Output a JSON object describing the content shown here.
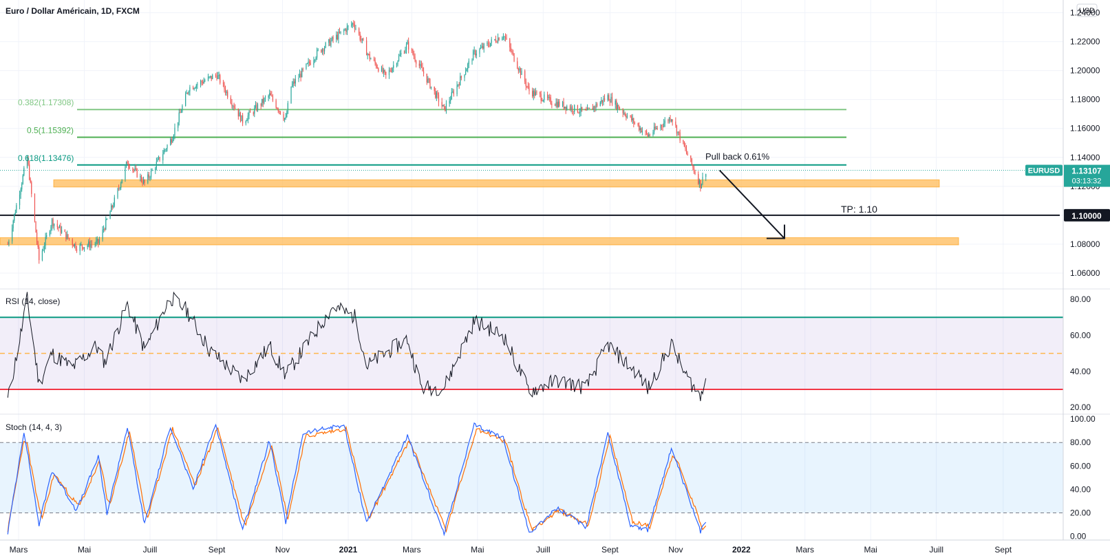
{
  "header": {
    "title": "Euro / Dollar Américain, 1D, FXCM",
    "currency_button": "USD"
  },
  "price_panel": {
    "symbol_badge": "EURUSD",
    "last_price": "1.13107",
    "countdown": "03:13:32",
    "tp_price_label": "1.10000",
    "colors": {
      "up": "#26a69a",
      "down": "#ef5350",
      "fib_382": "#81c784",
      "fib_50": "#4caf50",
      "fib_618": "#089981",
      "zone": "#ffb74d",
      "badge": "#26a69a",
      "tp_badge": "#131722"
    }
  },
  "annotations": {
    "fib_382": "0.382(1.17308)",
    "fib_50": "0.5(1.15392)",
    "fib_618": "0.618(1.13476)",
    "pullback": "Pull back 0.61%",
    "tp": "TP: 1.10"
  },
  "rsi_panel": {
    "title": "RSI (14, close)"
  },
  "stoch_panel": {
    "title": "Stoch (14, 4, 3)"
  },
  "time_axis": [
    "Mars",
    "Mai",
    "Juill",
    "Sept",
    "Nov",
    "2021",
    "Mars",
    "Mai",
    "Juill",
    "Sept",
    "Nov",
    "2022",
    "Mars",
    "Mai",
    "Juill",
    "Sept"
  ],
  "chart_data": [
    {
      "type": "candlestick",
      "title": "Euro / Dollar Américain, 1D, FXCM",
      "ylim": [
        1.05,
        1.245
      ],
      "y_ticks": [
        "1.24000",
        "1.22000",
        "1.20000",
        "1.18000",
        "1.16000",
        "1.14000",
        "1.12000",
        "1.10000",
        "1.08000",
        "1.06000"
      ],
      "close_path": [
        {
          "d": "2020-02-20",
          "v": 1.08
        },
        {
          "d": "2020-03-09",
          "v": 1.14
        },
        {
          "d": "2020-03-20",
          "v": 1.069
        },
        {
          "d": "2020-04-01",
          "v": 1.096
        },
        {
          "d": "2020-04-24",
          "v": 1.078
        },
        {
          "d": "2020-05-14",
          "v": 1.081
        },
        {
          "d": "2020-05-29",
          "v": 1.11
        },
        {
          "d": "2020-06-10",
          "v": 1.137
        },
        {
          "d": "2020-06-26",
          "v": 1.122
        },
        {
          "d": "2020-07-21",
          "v": 1.153
        },
        {
          "d": "2020-08-06",
          "v": 1.188
        },
        {
          "d": "2020-09-01",
          "v": 1.197
        },
        {
          "d": "2020-09-25",
          "v": 1.165
        },
        {
          "d": "2020-10-20",
          "v": 1.183
        },
        {
          "d": "2020-11-04",
          "v": 1.166
        },
        {
          "d": "2020-11-09",
          "v": 1.189
        },
        {
          "d": "2020-12-04",
          "v": 1.213
        },
        {
          "d": "2021-01-06",
          "v": 1.233
        },
        {
          "d": "2021-01-20",
          "v": 1.21
        },
        {
          "d": "2021-02-05",
          "v": 1.196
        },
        {
          "d": "2021-02-25",
          "v": 1.218
        },
        {
          "d": "2021-03-31",
          "v": 1.173
        },
        {
          "d": "2021-04-28",
          "v": 1.212
        },
        {
          "d": "2021-05-25",
          "v": 1.225
        },
        {
          "d": "2021-06-18",
          "v": 1.186
        },
        {
          "d": "2021-07-07",
          "v": 1.179
        },
        {
          "d": "2021-08-10",
          "v": 1.171
        },
        {
          "d": "2021-08-30",
          "v": 1.182
        },
        {
          "d": "2021-10-06",
          "v": 1.155
        },
        {
          "d": "2021-10-28",
          "v": 1.168
        },
        {
          "d": "2021-11-10",
          "v": 1.145
        },
        {
          "d": "2021-11-24",
          "v": 1.121
        },
        {
          "d": "2021-11-29",
          "v": 1.131
        }
      ],
      "fib_levels": [
        {
          "ratio": "0.382",
          "price": 1.17308
        },
        {
          "ratio": "0.5",
          "price": 1.15392
        },
        {
          "ratio": "0.618",
          "price": 1.13476
        }
      ],
      "support_zones": [
        {
          "low": 1.1195,
          "high": 1.1245
        },
        {
          "low": 1.0795,
          "high": 1.0845
        }
      ],
      "target_line": 1.1,
      "last_price": 1.13107,
      "arrow": {
        "from": {
          "d": "2021-11-29",
          "v": 1.132
        },
        "to": {
          "d": "2022-02-10",
          "v": 1.084
        }
      }
    },
    {
      "type": "line",
      "title": "RSI (14, close)",
      "ylim": [
        17,
        85
      ],
      "y_ticks": [
        "80.00",
        "60.00",
        "40.00",
        "20.00"
      ],
      "bands": {
        "upper": 70,
        "middle": 50,
        "lower": 30
      },
      "path": [
        {
          "d": "2020-02-20",
          "v": 24
        },
        {
          "d": "2020-03-06",
          "v": 70
        },
        {
          "d": "2020-03-09",
          "v": 80
        },
        {
          "d": "2020-03-20",
          "v": 33
        },
        {
          "d": "2020-04-01",
          "v": 50
        },
        {
          "d": "2020-04-20",
          "v": 42
        },
        {
          "d": "2020-05-12",
          "v": 54
        },
        {
          "d": "2020-05-20",
          "v": 45
        },
        {
          "d": "2020-06-10",
          "v": 77
        },
        {
          "d": "2020-06-26",
          "v": 52
        },
        {
          "d": "2020-07-20",
          "v": 81
        },
        {
          "d": "2020-08-04",
          "v": 74
        },
        {
          "d": "2020-08-25",
          "v": 52
        },
        {
          "d": "2020-09-25",
          "v": 35
        },
        {
          "d": "2020-10-20",
          "v": 54
        },
        {
          "d": "2020-11-04",
          "v": 38
        },
        {
          "d": "2020-12-18",
          "v": 76
        },
        {
          "d": "2021-01-08",
          "v": 70
        },
        {
          "d": "2021-01-18",
          "v": 43
        },
        {
          "d": "2021-02-25",
          "v": 58
        },
        {
          "d": "2021-03-10",
          "v": 31
        },
        {
          "d": "2021-03-31",
          "v": 31
        },
        {
          "d": "2021-04-28",
          "v": 68
        },
        {
          "d": "2021-05-25",
          "v": 60
        },
        {
          "d": "2021-06-18",
          "v": 29
        },
        {
          "d": "2021-07-14",
          "v": 35
        },
        {
          "d": "2021-08-10",
          "v": 31
        },
        {
          "d": "2021-08-30",
          "v": 55
        },
        {
          "d": "2021-09-10",
          "v": 48
        },
        {
          "d": "2021-09-28",
          "v": 38
        },
        {
          "d": "2021-10-06",
          "v": 30
        },
        {
          "d": "2021-10-28",
          "v": 55
        },
        {
          "d": "2021-11-10",
          "v": 38
        },
        {
          "d": "2021-11-24",
          "v": 26
        },
        {
          "d": "2021-11-29",
          "v": 40
        }
      ]
    },
    {
      "type": "line",
      "title": "Stoch (14, 4, 3)",
      "ylim": [
        -2,
        103
      ],
      "y_ticks": [
        "100.00",
        "80.00",
        "60.00",
        "40.00",
        "20.00",
        "0.00"
      ],
      "bands": {
        "upper": 80,
        "lower": 20
      },
      "series": [
        {
          "color": "#2962ff",
          "path": [
            {
              "d": "2020-02-20",
              "v": 3
            },
            {
              "d": "2020-03-06",
              "v": 90
            },
            {
              "d": "2020-03-20",
              "v": 10
            },
            {
              "d": "2020-04-01",
              "v": 56
            },
            {
              "d": "2020-04-24",
              "v": 22
            },
            {
              "d": "2020-05-14",
              "v": 68
            },
            {
              "d": "2020-05-22",
              "v": 20
            },
            {
              "d": "2020-06-10",
              "v": 93
            },
            {
              "d": "2020-06-26",
              "v": 10
            },
            {
              "d": "2020-07-20",
              "v": 94
            },
            {
              "d": "2020-08-10",
              "v": 40
            },
            {
              "d": "2020-08-31",
              "v": 96
            },
            {
              "d": "2020-09-25",
              "v": 5
            },
            {
              "d": "2020-10-20",
              "v": 82
            },
            {
              "d": "2020-11-04",
              "v": 12
            },
            {
              "d": "2020-11-20",
              "v": 88
            },
            {
              "d": "2020-12-28",
              "v": 95
            },
            {
              "d": "2021-01-18",
              "v": 12
            },
            {
              "d": "2021-02-25",
              "v": 85
            },
            {
              "d": "2021-03-31",
              "v": 2
            },
            {
              "d": "2021-04-28",
              "v": 95
            },
            {
              "d": "2021-05-25",
              "v": 84
            },
            {
              "d": "2021-06-18",
              "v": 3
            },
            {
              "d": "2021-07-14",
              "v": 24
            },
            {
              "d": "2021-08-10",
              "v": 8
            },
            {
              "d": "2021-08-30",
              "v": 88
            },
            {
              "d": "2021-09-20",
              "v": 10
            },
            {
              "d": "2021-10-06",
              "v": 5
            },
            {
              "d": "2021-10-28",
              "v": 75
            },
            {
              "d": "2021-11-24",
              "v": 4
            },
            {
              "d": "2021-11-29",
              "v": 12
            }
          ]
        },
        {
          "color": "#ff6d00",
          "path": [
            {
              "d": "2020-02-20",
              "v": 5
            },
            {
              "d": "2020-03-07",
              "v": 88
            },
            {
              "d": "2020-03-22",
              "v": 13
            },
            {
              "d": "2020-04-03",
              "v": 53
            },
            {
              "d": "2020-04-26",
              "v": 25
            },
            {
              "d": "2020-05-16",
              "v": 65
            },
            {
              "d": "2020-05-24",
              "v": 23
            },
            {
              "d": "2020-06-12",
              "v": 90
            },
            {
              "d": "2020-06-28",
              "v": 13
            },
            {
              "d": "2020-07-22",
              "v": 92
            },
            {
              "d": "2020-08-12",
              "v": 43
            },
            {
              "d": "2020-09-02",
              "v": 93
            },
            {
              "d": "2020-09-27",
              "v": 8
            },
            {
              "d": "2020-10-22",
              "v": 79
            },
            {
              "d": "2020-11-06",
              "v": 15
            },
            {
              "d": "2020-11-22",
              "v": 85
            },
            {
              "d": "2020-12-30",
              "v": 92
            },
            {
              "d": "2021-01-20",
              "v": 15
            },
            {
              "d": "2021-02-27",
              "v": 82
            },
            {
              "d": "2021-04-02",
              "v": 5
            },
            {
              "d": "2021-04-30",
              "v": 92
            },
            {
              "d": "2021-05-27",
              "v": 81
            },
            {
              "d": "2021-06-20",
              "v": 6
            },
            {
              "d": "2021-07-16",
              "v": 22
            },
            {
              "d": "2021-08-12",
              "v": 10
            },
            {
              "d": "2021-09-01",
              "v": 85
            },
            {
              "d": "2021-09-22",
              "v": 13
            },
            {
              "d": "2021-10-08",
              "v": 8
            },
            {
              "d": "2021-10-30",
              "v": 72
            },
            {
              "d": "2021-11-26",
              "v": 7
            },
            {
              "d": "2021-11-29",
              "v": 10
            }
          ]
        }
      ]
    }
  ]
}
